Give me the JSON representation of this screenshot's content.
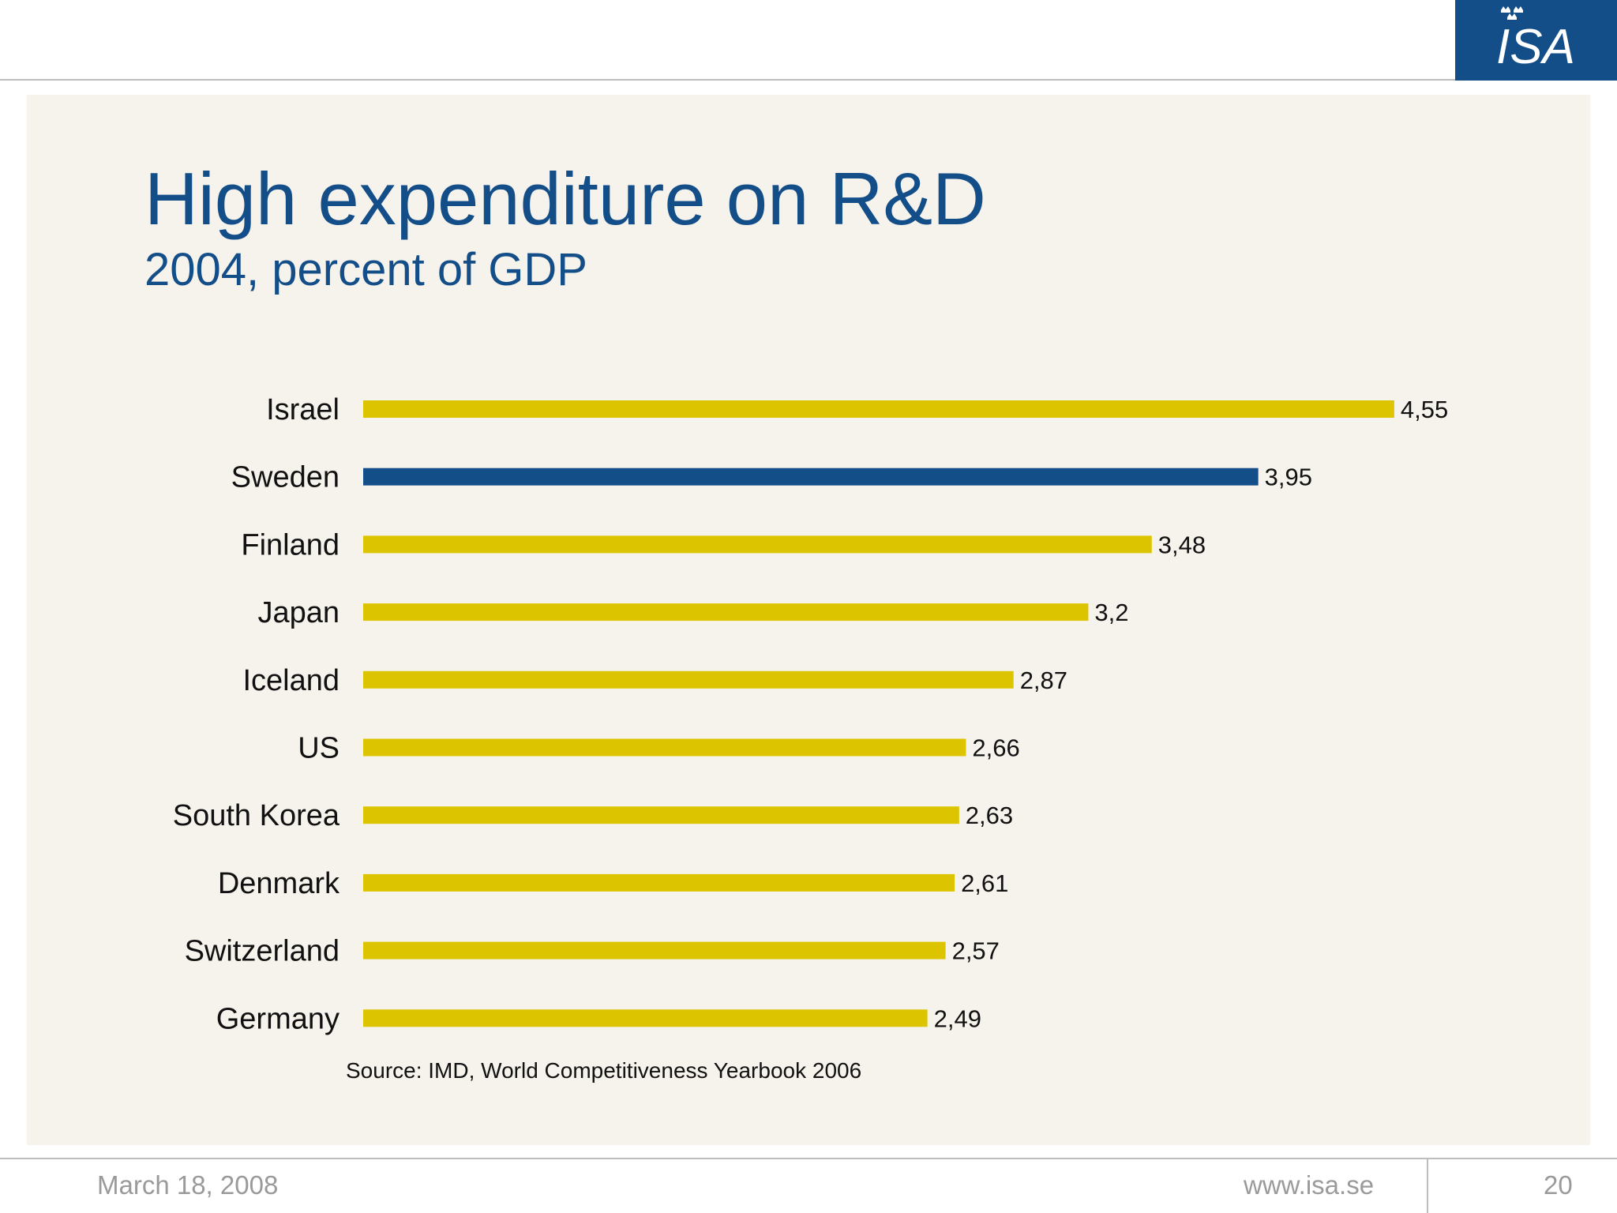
{
  "header": {
    "logo_text": "ISA"
  },
  "slide": {
    "title": "High expenditure on R&D",
    "subtitle": "2004, percent of GDP",
    "source": "Source: IMD, World Competitiveness Yearbook 2006"
  },
  "colors": {
    "title": "#134e89",
    "bar_default": "#dcc500",
    "bar_highlight": "#134e89",
    "panel": "#f6f2ec",
    "logo_bg": "#134e89"
  },
  "chart_data": {
    "type": "bar",
    "orientation": "horizontal",
    "categories": [
      "Israel",
      "Sweden",
      "Finland",
      "Japan",
      "Iceland",
      "US",
      "South Korea",
      "Denmark",
      "Switzerland",
      "Germany"
    ],
    "values": [
      4.55,
      3.95,
      3.48,
      3.2,
      2.87,
      2.66,
      2.63,
      2.61,
      2.57,
      2.49
    ],
    "value_labels": [
      "4,55",
      "3,95",
      "3,48",
      "3,2",
      "2,87",
      "2,66",
      "2,63",
      "2,61",
      "2,57",
      "2,49"
    ],
    "highlight": "Sweden",
    "title": "High expenditure on R&D",
    "subtitle": "2004, percent of GDP",
    "xlabel": "",
    "ylabel": "",
    "grid": false,
    "legend": "none"
  },
  "footer": {
    "date": "March 18, 2008",
    "url": "www.isa.se",
    "page": "20"
  }
}
